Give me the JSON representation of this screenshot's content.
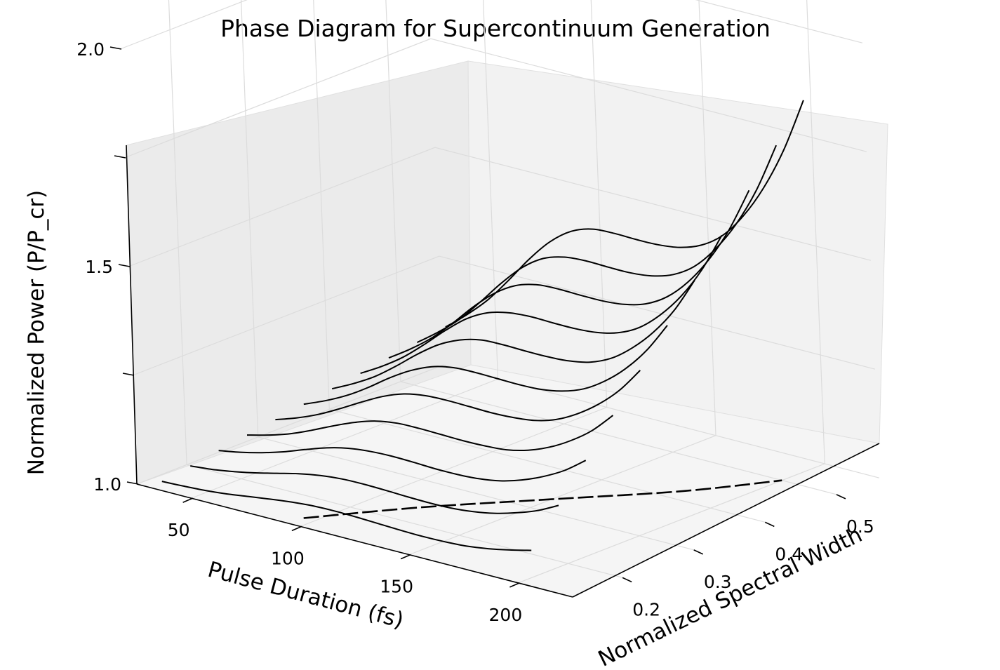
{
  "chart_data": {
    "type": "line",
    "title": "Phase Diagram for Supercontinuum Generation",
    "xlabel": "Pulse Duration (fs)",
    "ylabel": "Normalized Spectral Width",
    "zlabel": "Normalized Power (P/P_cr)",
    "x_ticks": [
      "50",
      "100",
      "150",
      "200"
    ],
    "y_ticks": [
      "0.2",
      "0.3",
      "0.4",
      "0.5"
    ],
    "z_ticks": [
      "1.0",
      "1.5",
      "2.0"
    ],
    "xlim": [
      25,
      225
    ],
    "ylim": [
      0.13,
      0.56
    ],
    "zlim": [
      1.0,
      2.25
    ],
    "grid": true,
    "legend": "none",
    "x": [
      30,
      40,
      50,
      60,
      70,
      80,
      90,
      100,
      110,
      120,
      130,
      140,
      150,
      160,
      170,
      180,
      190,
      200
    ],
    "series": [
      {
        "spectral_width": 0.15,
        "values": [
          1.0,
          1.002,
          1.005,
          1.01,
          1.017,
          1.024,
          1.03,
          1.034,
          1.035,
          1.034,
          1.032,
          1.03,
          1.029,
          1.03,
          1.033,
          1.04,
          1.05,
          1.062
        ]
      },
      {
        "spectral_width": 0.19,
        "values": [
          1.01,
          1.015,
          1.023,
          1.033,
          1.045,
          1.057,
          1.066,
          1.071,
          1.072,
          1.071,
          1.069,
          1.068,
          1.069,
          1.074,
          1.083,
          1.097,
          1.115,
          1.14
        ]
      },
      {
        "spectral_width": 0.23,
        "values": [
          1.02,
          1.029,
          1.041,
          1.056,
          1.074,
          1.091,
          1.103,
          1.109,
          1.111,
          1.11,
          1.108,
          1.108,
          1.111,
          1.119,
          1.134,
          1.155,
          1.182,
          1.218
        ]
      },
      {
        "spectral_width": 0.27,
        "values": [
          1.03,
          1.043,
          1.059,
          1.08,
          1.103,
          1.124,
          1.14,
          1.148,
          1.149,
          1.148,
          1.147,
          1.148,
          1.152,
          1.164,
          1.184,
          1.212,
          1.248,
          1.296
        ]
      },
      {
        "spectral_width": 0.31,
        "values": [
          1.04,
          1.057,
          1.078,
          1.104,
          1.132,
          1.158,
          1.177,
          1.186,
          1.188,
          1.187,
          1.186,
          1.188,
          1.194,
          1.209,
          1.235,
          1.27,
          1.315,
          1.374
        ]
      },
      {
        "spectral_width": 0.35,
        "values": [
          1.05,
          1.071,
          1.096,
          1.127,
          1.162,
          1.192,
          1.214,
          1.225,
          1.227,
          1.226,
          1.225,
          1.227,
          1.236,
          1.254,
          1.285,
          1.327,
          1.382,
          1.452
        ]
      },
      {
        "spectral_width": 0.39,
        "values": [
          1.06,
          1.085,
          1.114,
          1.151,
          1.191,
          1.226,
          1.25,
          1.263,
          1.265,
          1.264,
          1.264,
          1.267,
          1.277,
          1.299,
          1.336,
          1.385,
          1.448,
          1.53
        ]
      },
      {
        "spectral_width": 0.43,
        "values": [
          1.07,
          1.099,
          1.133,
          1.175,
          1.22,
          1.26,
          1.287,
          1.3,
          1.304,
          1.303,
          1.303,
          1.307,
          1.319,
          1.344,
          1.386,
          1.442,
          1.515,
          1.608
        ]
      },
      {
        "spectral_width": 0.47,
        "values": [
          1.08,
          1.113,
          1.151,
          1.198,
          1.249,
          1.293,
          1.324,
          1.339,
          1.342,
          1.341,
          1.341,
          1.346,
          1.36,
          1.389,
          1.436,
          1.5,
          1.582,
          1.686
        ]
      },
      {
        "spectral_width": 0.51,
        "values": [
          1.09,
          1.127,
          1.169,
          1.222,
          1.278,
          1.327,
          1.361,
          1.377,
          1.381,
          1.38,
          1.38,
          1.386,
          1.402,
          1.434,
          1.487,
          1.557,
          1.648,
          1.764
        ]
      },
      {
        "spectral_width": 0.55,
        "values": [
          1.1,
          1.141,
          1.188,
          1.246,
          1.308,
          1.361,
          1.398,
          1.416,
          1.419,
          1.418,
          1.419,
          1.426,
          1.444,
          1.479,
          1.537,
          1.615,
          1.715,
          1.842
        ]
      }
    ],
    "boundary": {
      "style": "dashed",
      "x": [
        95,
        120,
        150,
        180,
        200
      ],
      "y": [
        0.15,
        0.24,
        0.33,
        0.42,
        0.5
      ],
      "z": [
        1.0,
        1.0,
        1.0,
        1.0,
        1.0
      ]
    }
  }
}
